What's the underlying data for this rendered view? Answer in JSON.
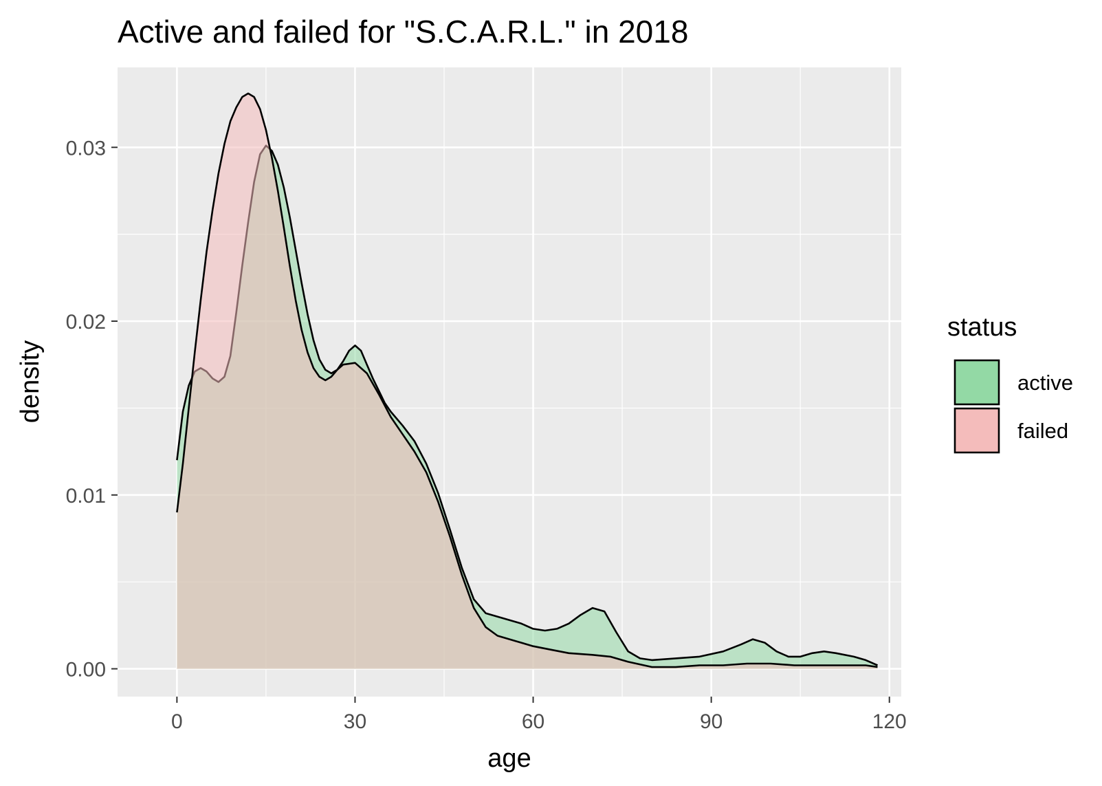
{
  "chart_data": {
    "type": "area",
    "title": "Active and failed for \"S.C.A.R.L.\" in 2018",
    "xlabel": "age",
    "ylabel": "density",
    "xlim": [
      -10,
      122
    ],
    "ylim": [
      -0.0016,
      0.0346
    ],
    "x_ticks": [
      0,
      30,
      60,
      90,
      120
    ],
    "x_tick_labels": [
      "0",
      "30",
      "60",
      "90",
      "120"
    ],
    "y_ticks": [
      0.0,
      0.01,
      0.02,
      0.03
    ],
    "y_tick_labels": [
      "0.00",
      "0.01",
      "0.02",
      "0.03"
    ],
    "grid": true,
    "legend": {
      "title": "status",
      "position": "right"
    },
    "series": [
      {
        "name": "active",
        "color": "#93d9a5",
        "points": [
          [
            0,
            0.012
          ],
          [
            1,
            0.0148
          ],
          [
            2,
            0.0163
          ],
          [
            3,
            0.0171
          ],
          [
            4,
            0.0173
          ],
          [
            5,
            0.0171
          ],
          [
            6,
            0.0167
          ],
          [
            7,
            0.0165
          ],
          [
            8,
            0.0168
          ],
          [
            9,
            0.018
          ],
          [
            10,
            0.0205
          ],
          [
            11,
            0.0232
          ],
          [
            12,
            0.0257
          ],
          [
            13,
            0.028
          ],
          [
            14,
            0.0296
          ],
          [
            15,
            0.0301
          ],
          [
            16,
            0.0298
          ],
          [
            17,
            0.029
          ],
          [
            18,
            0.0277
          ],
          [
            19,
            0.026
          ],
          [
            20,
            0.0241
          ],
          [
            21,
            0.0222
          ],
          [
            22,
            0.0204
          ],
          [
            23,
            0.0189
          ],
          [
            24,
            0.0178
          ],
          [
            25,
            0.0172
          ],
          [
            26,
            0.017
          ],
          [
            27,
            0.0172
          ],
          [
            28,
            0.0177
          ],
          [
            29,
            0.0183
          ],
          [
            30,
            0.0186
          ],
          [
            31,
            0.0183
          ],
          [
            32,
            0.0175
          ],
          [
            33,
            0.0167
          ],
          [
            34,
            0.016
          ],
          [
            35,
            0.0153
          ],
          [
            36,
            0.0148
          ],
          [
            38,
            0.014
          ],
          [
            40,
            0.0131
          ],
          [
            42,
            0.0118
          ],
          [
            44,
            0.0101
          ],
          [
            46,
            0.008
          ],
          [
            48,
            0.0058
          ],
          [
            50,
            0.004
          ],
          [
            52,
            0.0032
          ],
          [
            55,
            0.0029
          ],
          [
            58,
            0.0026
          ],
          [
            60,
            0.0023
          ],
          [
            62,
            0.0022
          ],
          [
            64,
            0.0023
          ],
          [
            66,
            0.0026
          ],
          [
            68,
            0.0031
          ],
          [
            70,
            0.0035
          ],
          [
            72,
            0.0033
          ],
          [
            74,
            0.0021
          ],
          [
            76,
            0.001
          ],
          [
            78,
            0.0006
          ],
          [
            80,
            0.0005
          ],
          [
            84,
            0.0006
          ],
          [
            88,
            0.0007
          ],
          [
            92,
            0.001
          ],
          [
            95,
            0.0014
          ],
          [
            97,
            0.0017
          ],
          [
            99,
            0.0015
          ],
          [
            101,
            0.001
          ],
          [
            103,
            0.0007
          ],
          [
            105,
            0.0007
          ],
          [
            107,
            0.0009
          ],
          [
            109,
            0.001
          ],
          [
            111,
            0.0009
          ],
          [
            114,
            0.0007
          ],
          [
            116,
            0.0005
          ],
          [
            118,
            0.0002
          ]
        ]
      },
      {
        "name": "failed",
        "color": "#f4bcbb",
        "points": [
          [
            0,
            0.009
          ],
          [
            1,
            0.0118
          ],
          [
            2,
            0.015
          ],
          [
            3,
            0.0182
          ],
          [
            4,
            0.0212
          ],
          [
            5,
            0.024
          ],
          [
            6,
            0.0264
          ],
          [
            7,
            0.0285
          ],
          [
            8,
            0.0302
          ],
          [
            9,
            0.0315
          ],
          [
            10,
            0.0323
          ],
          [
            11,
            0.0329
          ],
          [
            12,
            0.0331
          ],
          [
            13,
            0.0329
          ],
          [
            14,
            0.0322
          ],
          [
            15,
            0.031
          ],
          [
            16,
            0.0294
          ],
          [
            17,
            0.0275
          ],
          [
            18,
            0.0254
          ],
          [
            19,
            0.0232
          ],
          [
            20,
            0.0212
          ],
          [
            21,
            0.0195
          ],
          [
            22,
            0.0182
          ],
          [
            23,
            0.0173
          ],
          [
            24,
            0.0168
          ],
          [
            25,
            0.0166
          ],
          [
            26,
            0.0168
          ],
          [
            27,
            0.0172
          ],
          [
            28,
            0.0175
          ],
          [
            30,
            0.0176
          ],
          [
            32,
            0.017
          ],
          [
            34,
            0.0158
          ],
          [
            36,
            0.0145
          ],
          [
            38,
            0.0135
          ],
          [
            40,
            0.0125
          ],
          [
            42,
            0.0113
          ],
          [
            44,
            0.0096
          ],
          [
            46,
            0.0076
          ],
          [
            48,
            0.0054
          ],
          [
            50,
            0.0035
          ],
          [
            52,
            0.0024
          ],
          [
            54,
            0.0019
          ],
          [
            57,
            0.0016
          ],
          [
            60,
            0.0013
          ],
          [
            63,
            0.0011
          ],
          [
            66,
            0.0009
          ],
          [
            70,
            0.0008
          ],
          [
            73,
            0.0007
          ],
          [
            76,
            0.0004
          ],
          [
            80,
            0.0001
          ],
          [
            84,
            0.0001
          ],
          [
            88,
            0.0002
          ],
          [
            92,
            0.0002
          ],
          [
            96,
            0.0003
          ],
          [
            100,
            0.0003
          ],
          [
            104,
            0.0002
          ],
          [
            108,
            0.0002
          ],
          [
            112,
            0.0002
          ],
          [
            116,
            0.0002
          ],
          [
            118,
            0.0001
          ]
        ]
      }
    ]
  },
  "colors": {
    "panel_background": "#ebebeb",
    "grid_line": "#ffffff",
    "outline": "#000000"
  }
}
